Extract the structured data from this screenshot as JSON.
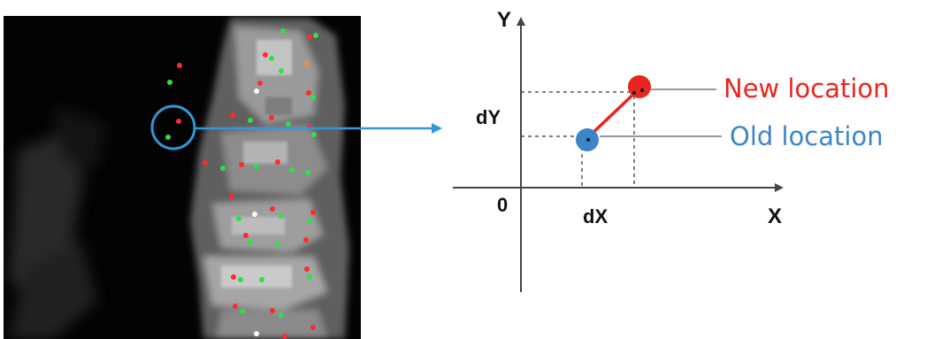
{
  "colors": {
    "background": "#ffffff",
    "scan_bg": "#030303",
    "callout": "#2f9ad6",
    "old_location": "#3b86c9",
    "new_location": "#e8251f",
    "axis": "#444444",
    "guide": "#555555",
    "leader": "#999999",
    "text_dark": "#111111"
  },
  "image_panel": {
    "description": "grayscale scan with red and green marker dots",
    "highlight": "circle around marker pair",
    "arrow": "points to diagram"
  },
  "diagram": {
    "axis_y_label": "Y",
    "axis_x_label": "X",
    "origin_label": "0",
    "dy_label": "dY",
    "dx_label": "dX",
    "new_location_label": "New location",
    "old_location_label": "Old location"
  }
}
